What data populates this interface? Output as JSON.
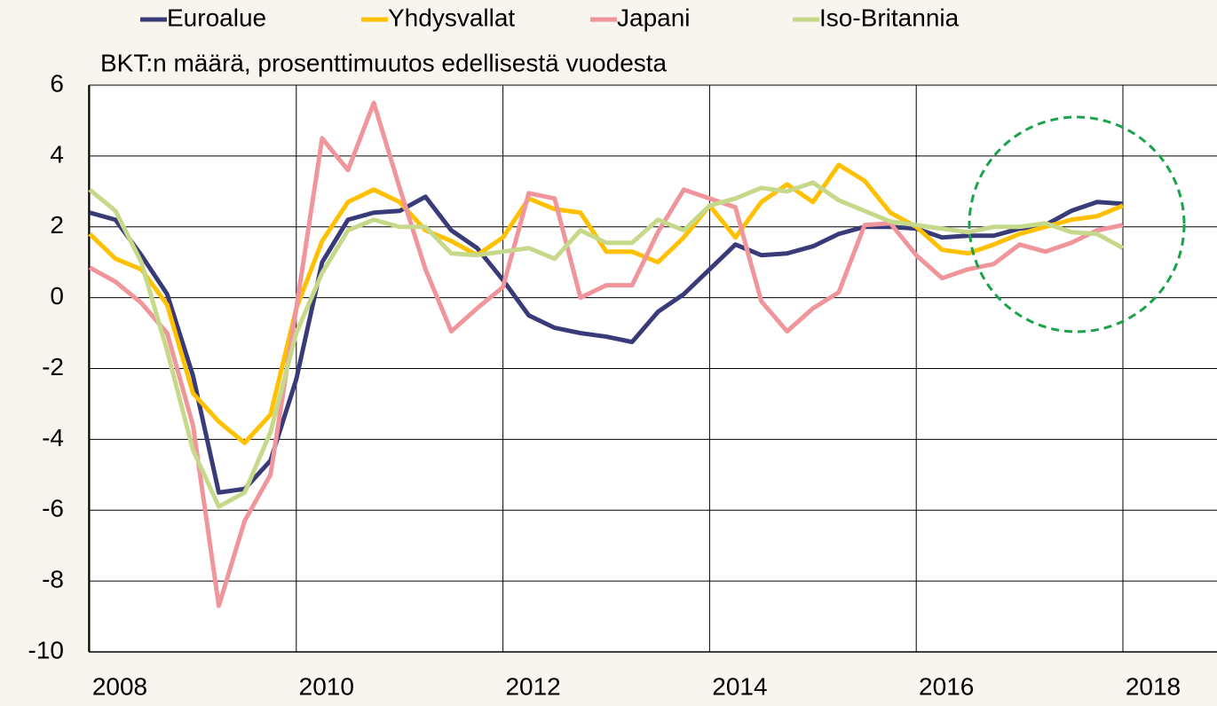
{
  "chart_data": {
    "type": "line",
    "annotation": "BKT:n määrä, prosenttimuutos edellisestä vuodesta",
    "x": [
      2008,
      2008.25,
      2008.5,
      2008.75,
      2009,
      2009.25,
      2009.5,
      2009.75,
      2010,
      2010.25,
      2010.5,
      2010.75,
      2011,
      2011.25,
      2011.5,
      2011.75,
      2012,
      2012.25,
      2012.5,
      2012.75,
      2013,
      2013.25,
      2013.5,
      2013.75,
      2014,
      2014.25,
      2014.5,
      2014.75,
      2015,
      2015.25,
      2015.5,
      2015.75,
      2016,
      2016.25,
      2016.5,
      2016.75,
      2017,
      2017.25,
      2017.5,
      2017.75,
      2018
    ],
    "series": [
      {
        "name": "Euroalue",
        "color": "#383b78",
        "values": [
          2.4,
          2.2,
          1.2,
          0.1,
          -2.2,
          -5.5,
          -5.4,
          -4.6,
          -2.3,
          1.0,
          2.2,
          2.4,
          2.45,
          2.85,
          1.9,
          1.4,
          0.5,
          -0.5,
          -0.85,
          -1.0,
          -1.1,
          -1.25,
          -0.4,
          0.1,
          0.8,
          1.5,
          1.2,
          1.25,
          1.45,
          1.8,
          2.0,
          2.0,
          1.95,
          1.7,
          1.75,
          1.75,
          1.95,
          2.05,
          2.45,
          2.7,
          2.65
        ]
      },
      {
        "name": "Yhdysvallat",
        "color": "#ffc000",
        "values": [
          1.8,
          1.1,
          0.8,
          -0.2,
          -2.7,
          -3.5,
          -4.1,
          -3.3,
          -0.3,
          1.6,
          2.7,
          3.05,
          2.7,
          1.9,
          1.6,
          1.2,
          1.7,
          2.8,
          2.5,
          2.4,
          1.3,
          1.3,
          1.0,
          1.7,
          2.6,
          1.7,
          2.7,
          3.2,
          2.7,
          3.75,
          3.3,
          2.4,
          2.0,
          1.35,
          1.25,
          1.5,
          1.8,
          2.0,
          2.2,
          2.3,
          2.6
        ]
      },
      {
        "name": "Japani",
        "color": "#f0959b",
        "values": [
          0.85,
          0.45,
          -0.15,
          -1.0,
          -3.6,
          -8.7,
          -6.3,
          -5.0,
          -0.3,
          4.5,
          3.6,
          5.5,
          3.1,
          0.8,
          -0.95,
          -0.3,
          0.3,
          2.95,
          2.8,
          0.0,
          0.35,
          0.35,
          1.85,
          3.05,
          2.8,
          2.55,
          -0.1,
          -0.95,
          -0.3,
          0.15,
          2.05,
          2.1,
          1.2,
          0.55,
          0.8,
          0.95,
          1.5,
          1.3,
          1.55,
          1.9,
          2.05
        ]
      },
      {
        "name": "Iso-Britannia",
        "color": "#c6d98b",
        "values": [
          3.05,
          2.45,
          1.0,
          -1.5,
          -4.3,
          -5.9,
          -5.5,
          -3.8,
          -1.0,
          0.7,
          1.9,
          2.2,
          2.0,
          2.0,
          1.25,
          1.2,
          1.3,
          1.4,
          1.1,
          1.9,
          1.55,
          1.55,
          2.2,
          1.9,
          2.6,
          2.8,
          3.1,
          3.0,
          3.25,
          2.75,
          2.45,
          2.15,
          2.05,
          1.95,
          1.85,
          2.0,
          2.0,
          2.1,
          1.85,
          1.8,
          1.4
        ]
      }
    ],
    "xlim": [
      2008,
      2018.91
    ],
    "xticks": [
      2008,
      2010,
      2012,
      2014,
      2016,
      2018
    ],
    "ylim": [
      -10,
      6
    ],
    "yticks": [
      -10,
      -8,
      -6,
      -4,
      -2,
      0,
      2,
      4,
      6
    ],
    "grid": true,
    "legend": "top"
  }
}
